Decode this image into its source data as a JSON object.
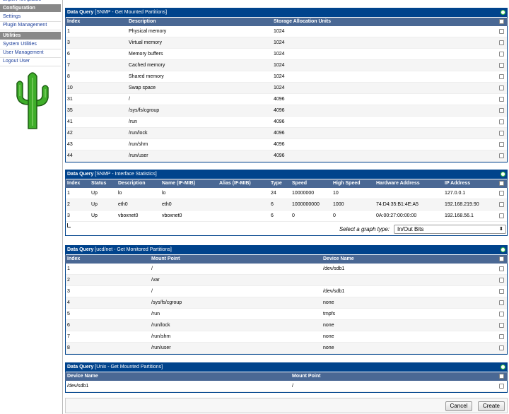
{
  "sidebar": {
    "cut_item": "Export Templates",
    "sections": [
      {
        "title": "Configuration",
        "items": [
          "Settings",
          "Plugin Management"
        ]
      },
      {
        "title": "Utilities",
        "items": [
          "System Utilities",
          "User Management",
          "Logout User"
        ]
      }
    ]
  },
  "panels": [
    {
      "label": "Data Query",
      "title": "[SNMP - Get Mounted Partitions]",
      "columns": [
        "Index",
        "Description",
        "Storage Allocation Units"
      ],
      "rows": [
        [
          "1",
          "Physical memory",
          "1024"
        ],
        [
          "3",
          "Virtual memory",
          "1024"
        ],
        [
          "6",
          "Memory buffers",
          "1024"
        ],
        [
          "7",
          "Cached memory",
          "1024"
        ],
        [
          "8",
          "Shared memory",
          "1024"
        ],
        [
          "10",
          "Swap space",
          "1024"
        ],
        [
          "31",
          "/",
          "4096"
        ],
        [
          "35",
          "/sys/fs/cgroup",
          "4096"
        ],
        [
          "41",
          "/run",
          "4096"
        ],
        [
          "42",
          "/run/lock",
          "4096"
        ],
        [
          "43",
          "/run/shm",
          "4096"
        ],
        [
          "44",
          "/run/user",
          "4096"
        ]
      ]
    },
    {
      "label": "Data Query",
      "title": "[SNMP - Interface Statistics]",
      "columns": [
        "Index",
        "Status",
        "Description",
        "Name (IF-MIB)",
        "Alias (IF-MIB)",
        "Type",
        "Speed",
        "High Speed",
        "Hardware Address",
        "IP Address"
      ],
      "rows": [
        [
          "1",
          "Up",
          "lo",
          "lo",
          null,
          "24",
          "10000000",
          "10",
          null,
          "127.0.0.1"
        ],
        [
          "2",
          "Up",
          "eth0",
          "eth0",
          null,
          "6",
          "1000000000",
          "1000",
          "74:D4:35:B1:4E:A5",
          "192.168.219.90"
        ],
        [
          "3",
          "Up",
          "vboxnet0",
          "vboxnet0",
          null,
          "6",
          "0",
          "0",
          "0A:00:27:00:00:00",
          "192.168.56.1"
        ]
      ],
      "graph_type_label": "Select a graph type:",
      "graph_type": "In/Out Bits"
    },
    {
      "label": "Data Query",
      "title": "[ucd/net - Get Monitored Partitions]",
      "columns": [
        "Index",
        "Mount Point",
        "Device Name"
      ],
      "rows": [
        [
          "1",
          "/",
          "/dev/sdb1"
        ],
        [
          "2",
          "/var",
          null
        ],
        [
          "3",
          "/",
          "/dev/sdb1"
        ],
        [
          "4",
          "/sys/fs/cgroup",
          "none"
        ],
        [
          "5",
          "/run",
          "tmpfs"
        ],
        [
          "6",
          "/run/lock",
          "none"
        ],
        [
          "7",
          "/run/shm",
          "none"
        ],
        [
          "8",
          "/run/user",
          "none"
        ]
      ]
    },
    {
      "label": "Data Query",
      "title": "[Unix - Get Mounted Partitions]",
      "columns": [
        "Device Name",
        "Mount Point"
      ],
      "rows": [
        [
          "/dev/sdb1",
          "/"
        ]
      ]
    }
  ],
  "buttons": [
    "Cancel",
    "Create"
  ]
}
